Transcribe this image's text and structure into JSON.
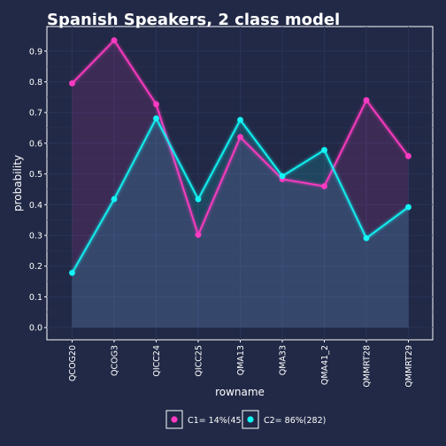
{
  "chart_data": {
    "type": "line",
    "title": "Spanish Speakers, 2 class model",
    "xlabel": "rowname",
    "ylabel": "probability",
    "categories": [
      "QCOG20",
      "QCOG3",
      "QICC24",
      "QICC25",
      "QMA13",
      "QMA33",
      "QMA41_2",
      "QMMRT28",
      "QMMRT29"
    ],
    "ylim": [
      -0.04,
      0.98
    ],
    "yticks": [
      0.0,
      0.1,
      0.2,
      0.3,
      0.4,
      0.5,
      0.6,
      0.7,
      0.8,
      0.9
    ],
    "ytick_labels": [
      "0.0",
      "0.1",
      "0.2",
      "0.3",
      "0.4",
      "0.5",
      "0.6",
      "0.7",
      "0.8",
      "0.9"
    ],
    "grid": true,
    "legend_position": "bottom",
    "series": [
      {
        "name": "C1= 14%(45)",
        "color": "#FE3BC3",
        "values": [
          0.795,
          0.935,
          0.727,
          0.302,
          0.62,
          0.483,
          0.46,
          0.74,
          0.558
        ]
      },
      {
        "name": "C2= 86%(282)",
        "color": "#12F6F6",
        "values": [
          0.178,
          0.418,
          0.681,
          0.418,
          0.676,
          0.493,
          0.578,
          0.291,
          0.392
        ]
      }
    ]
  }
}
